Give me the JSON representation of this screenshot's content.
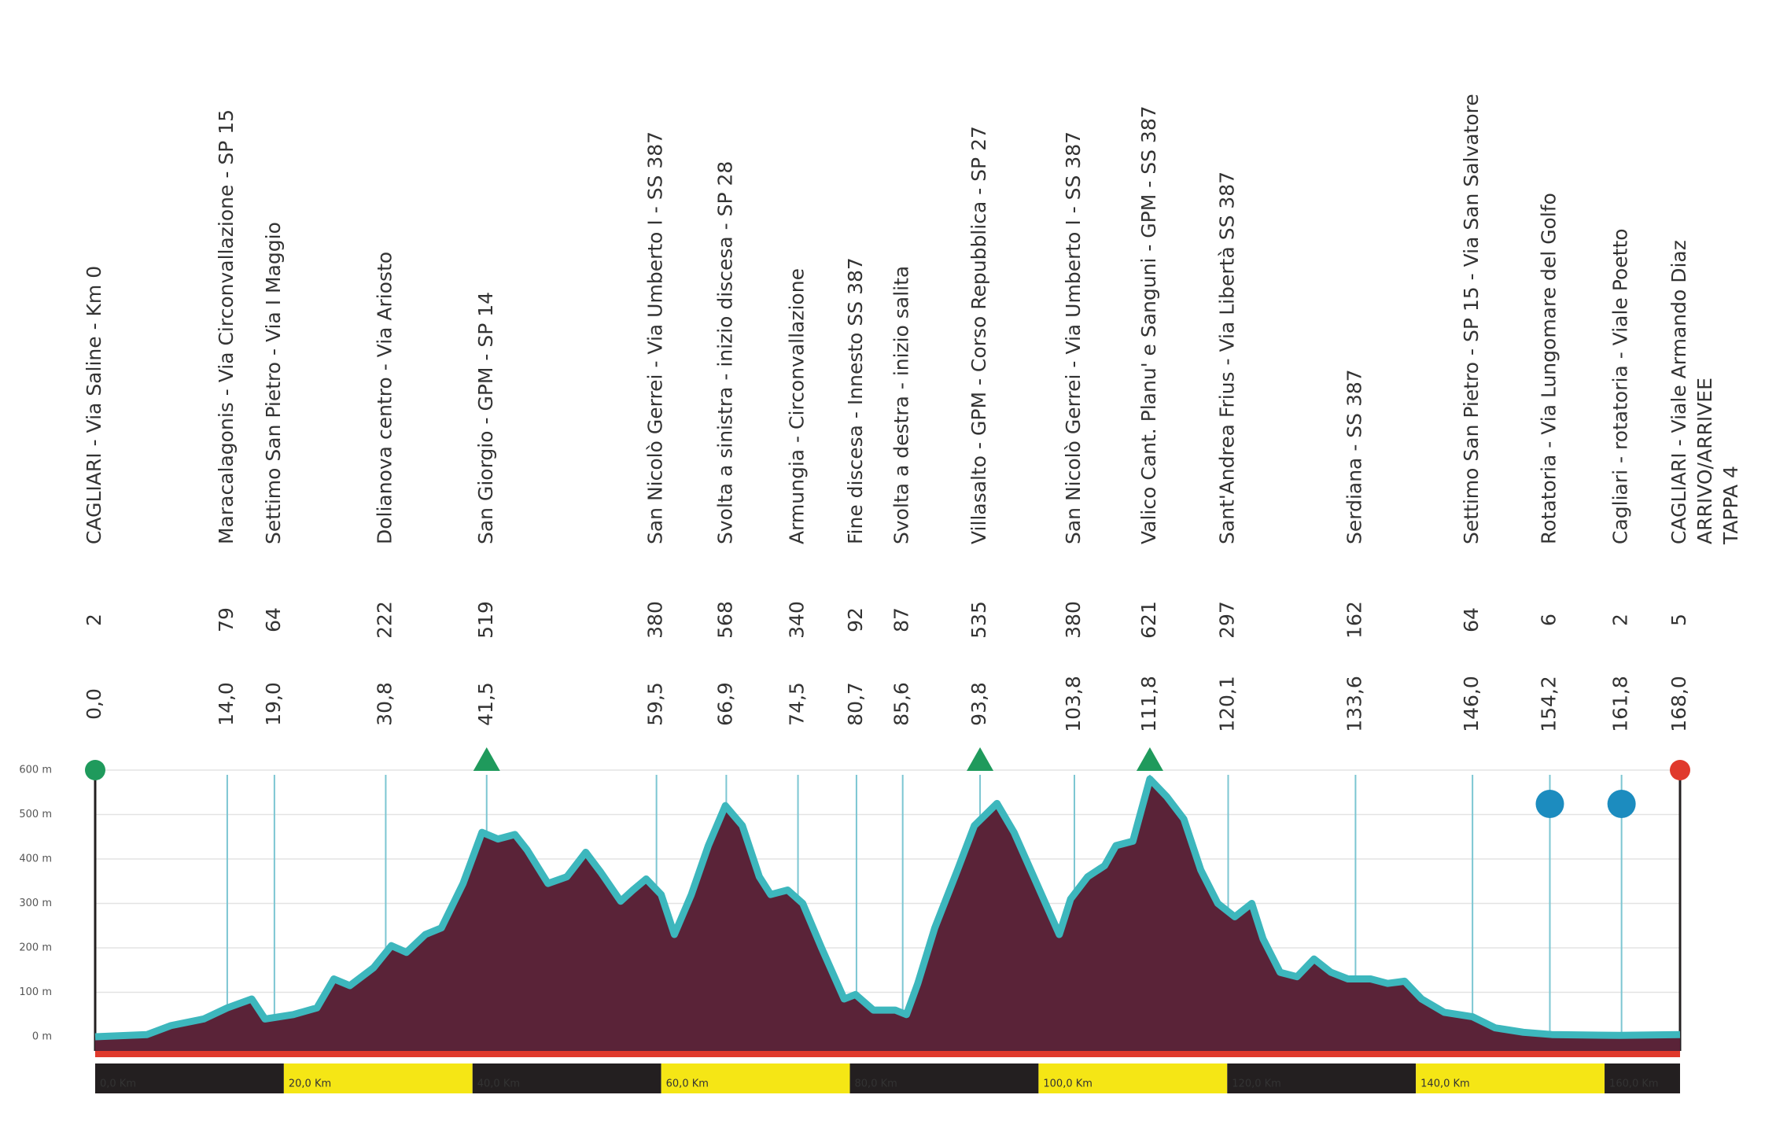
{
  "chart_data": {
    "type": "area",
    "x": [
      0,
      5.5,
      8,
      11.5,
      14,
      16.6,
      18,
      21,
      23.5,
      25.3,
      27,
      29.5,
      31.4,
      33,
      35,
      36.7,
      39,
      41,
      42.7,
      44.5,
      45.8,
      48,
      50,
      52,
      53.6,
      55.7,
      57,
      58.4,
      60,
      61.4,
      63.2,
      65,
      66.8,
      68.6,
      70.4,
      71.6,
      73.4,
      75,
      77,
      79.4,
      80.6,
      82.5,
      84.8,
      86,
      87.2,
      89,
      91.4,
      93.2,
      95.6,
      97.4,
      99.8,
      102.2,
      103.4,
      105.2,
      107,
      108.2,
      110,
      111.8,
      113.6,
      115.4,
      117.2,
      119,
      120.8,
      122.6,
      123.8,
      125.6,
      127.4,
      129.2,
      131,
      132.8,
      135.2,
      137,
      138.8,
      140.6,
      143,
      146,
      148.4,
      151.4,
      154.4,
      161.6,
      168
    ],
    "values": [
      0,
      5,
      25,
      40,
      65,
      85,
      40,
      50,
      65,
      130,
      115,
      155,
      205,
      190,
      230,
      245,
      345,
      460,
      445,
      455,
      420,
      345,
      360,
      415,
      370,
      305,
      330,
      355,
      320,
      230,
      320,
      430,
      520,
      475,
      360,
      320,
      330,
      300,
      200,
      85,
      95,
      60,
      60,
      50,
      120,
      245,
      375,
      475,
      525,
      460,
      345,
      230,
      310,
      360,
      385,
      430,
      440,
      580,
      540,
      490,
      375,
      300,
      270,
      300,
      220,
      145,
      135,
      175,
      145,
      130,
      130,
      120,
      125,
      85,
      55,
      45,
      20,
      10,
      5,
      3,
      5
    ],
    "fill_color": "#5a2338",
    "line_color": "#3db7bd",
    "xlim": [
      0,
      168
    ],
    "ylim": [
      0,
      600
    ],
    "yticks": [
      {
        "value": 0,
        "label": "0 m"
      },
      {
        "value": 100,
        "label": "100 m"
      },
      {
        "value": 200,
        "label": "200 m"
      },
      {
        "value": 300,
        "label": "300 m"
      },
      {
        "value": 400,
        "label": "400 m"
      },
      {
        "value": 500,
        "label": "500 m"
      },
      {
        "value": 600,
        "label": "600 m"
      }
    ],
    "xticks": [
      {
        "value": 0,
        "label": "0,0 Km"
      },
      {
        "value": 20,
        "label": "20,0 Km"
      },
      {
        "value": 40,
        "label": "40,0 Km"
      },
      {
        "value": 60,
        "label": "60,0 Km"
      },
      {
        "value": 80,
        "label": "80,0 Km"
      },
      {
        "value": 100,
        "label": "100,0 Km"
      },
      {
        "value": 120,
        "label": "120,0 Km"
      },
      {
        "value": 140,
        "label": "140,0 Km"
      },
      {
        "value": 160,
        "label": "160,0 Km"
      }
    ],
    "km_bar_colors": [
      "#231f20",
      "#f5e615"
    ],
    "grid": true,
    "waypoints": [
      {
        "km": {
          "value": 0,
          "label": "0,0"
        },
        "altitude": 2,
        "name": [
          "CAGLIARI - Via Saline - Km 0"
        ],
        "color": "#1f9a5c",
        "marker": "start"
      },
      {
        "km": {
          "value": 14,
          "label": "14,0"
        },
        "altitude": 79,
        "name": [
          "Maracalagonis - Via Circonvallazione - SP 15"
        ]
      },
      {
        "km": {
          "value": 19,
          "label": "19,0"
        },
        "altitude": 64,
        "name": [
          "Settimo San Pietro - Via I Maggio"
        ]
      },
      {
        "km": {
          "value": 30.8,
          "label": "30,8"
        },
        "altitude": 222,
        "name": [
          "Dolianova centro - Via Ariosto"
        ]
      },
      {
        "km": {
          "value": 41.5,
          "label": "41,5"
        },
        "altitude": 519,
        "name": [
          "San Giorgio - GPM - SP 14"
        ],
        "marker": "gpm"
      },
      {
        "km": {
          "value": 59.5,
          "label": "59,5"
        },
        "altitude": 380,
        "name": [
          "San Nicolò Gerrei - Via Umberto I - SS 387"
        ]
      },
      {
        "km": {
          "value": 66.9,
          "label": "66,9"
        },
        "altitude": 568,
        "name": [
          "Svolta a sinistra - inizio discesa - SP 28"
        ]
      },
      {
        "km": {
          "value": 74.5,
          "label": "74,5"
        },
        "altitude": 340,
        "name": [
          "Armungia - Circonvallazione"
        ]
      },
      {
        "km": {
          "value": 80.7,
          "label": "80,7"
        },
        "altitude": 92,
        "name": [
          "Fine discesa - Innesto SS 387"
        ]
      },
      {
        "km": {
          "value": 85.6,
          "label": "85,6"
        },
        "altitude": 87,
        "name": [
          "Svolta a destra - inizio salita"
        ]
      },
      {
        "km": {
          "value": 93.8,
          "label": "93,8"
        },
        "altitude": 535,
        "name": [
          "Villasalto - GPM - Corso Repubblica - SP 27"
        ],
        "marker": "gpm"
      },
      {
        "km": {
          "value": 103.8,
          "label": "103,8"
        },
        "altitude": 380,
        "name": [
          "San Nicolò Gerrei - Via Umberto I - SS 387"
        ]
      },
      {
        "km": {
          "value": 111.8,
          "label": "111,8"
        },
        "altitude": 621,
        "name": [
          "Valico Cant. Planu' e Sanguni - GPM - SS 387"
        ],
        "marker": "gpm"
      },
      {
        "km": {
          "value": 120.1,
          "label": "120,1"
        },
        "altitude": 297,
        "name": [
          "Sant'Andrea Frius - Via Libertà SS 387"
        ]
      },
      {
        "km": {
          "value": 133.6,
          "label": "133,6"
        },
        "altitude": 162,
        "name": [
          "Serdiana - SS 387"
        ]
      },
      {
        "km": {
          "value": 146,
          "label": "146,0"
        },
        "altitude": 64,
        "name": [
          "Settimo San Pietro - SP 15 - Via San Salvatore"
        ]
      },
      {
        "km": {
          "value": 154.2,
          "label": "154,2"
        },
        "altitude": 6,
        "name": [
          "Rotatoria - Via Lungomare del Golfo"
        ],
        "marker": "sprint"
      },
      {
        "km": {
          "value": 161.8,
          "label": "161,8"
        },
        "altitude": 2,
        "name": [
          "Cagliari - rotatoria - Viale Poetto"
        ],
        "marker": "sprint"
      },
      {
        "km": {
          "value": 168,
          "label": "168,0"
        },
        "altitude": 5,
        "name": [
          "CAGLIARI - Viale Armando Diaz",
          "ARRIVO/ARRIVEE",
          "TAPPA 4"
        ],
        "color": "#e0392c",
        "marker": "finish"
      }
    ]
  }
}
